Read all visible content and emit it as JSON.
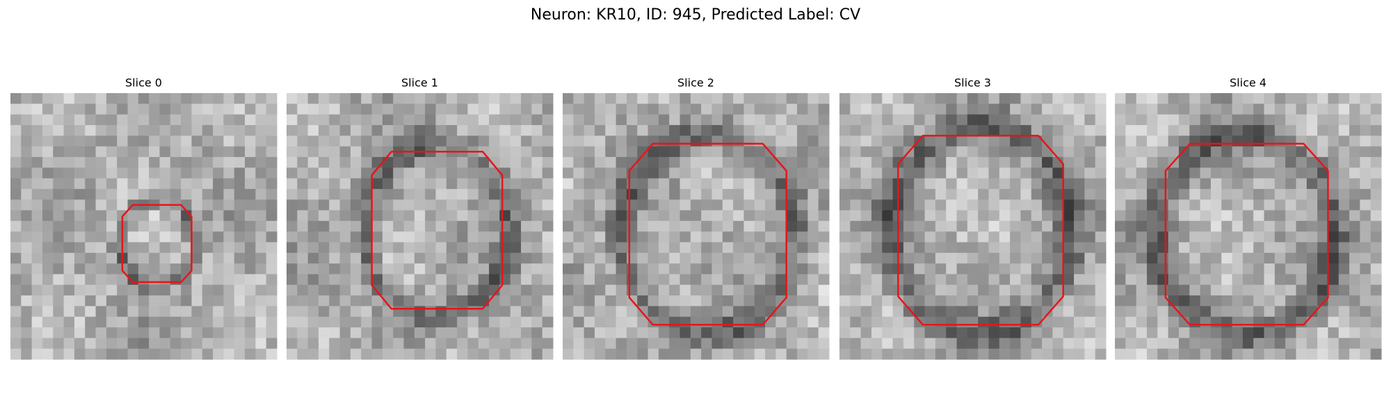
{
  "title": "Neuron: KR10, ID: 945, Predicted Label: CV",
  "panels": [
    {
      "title": "Slice 0"
    },
    {
      "title": "Slice 1"
    },
    {
      "title": "Slice 2"
    },
    {
      "title": "Slice 3"
    },
    {
      "title": "Slice 4"
    }
  ]
}
